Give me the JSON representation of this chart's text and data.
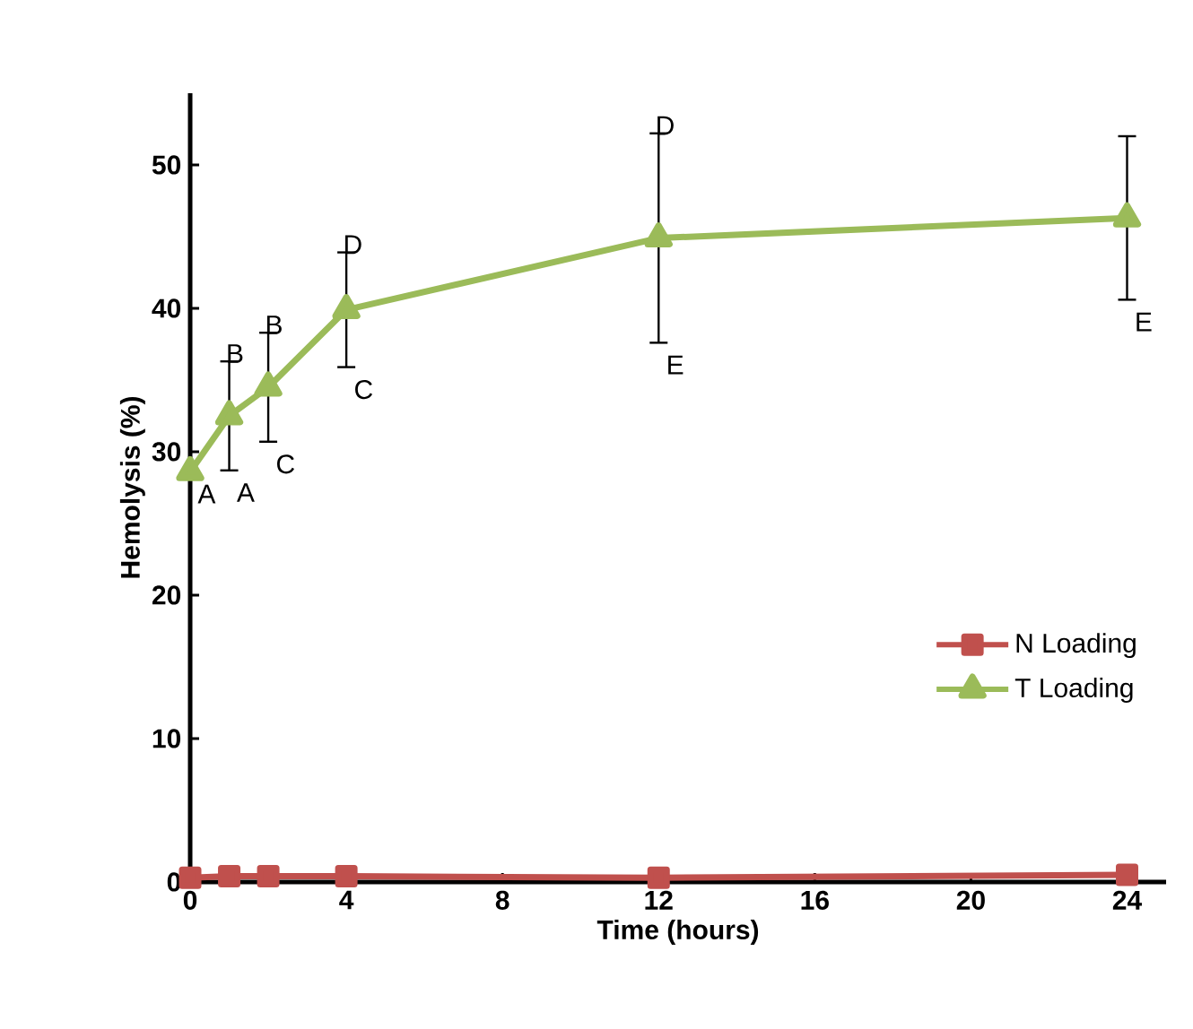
{
  "chart_data": {
    "type": "line",
    "xlabel": "Time (hours)",
    "ylabel": "Hemolysis (%)",
    "x": [
      0,
      1,
      2,
      4,
      12,
      24
    ],
    "series": [
      {
        "name": "N Loading",
        "color": "#c0504d",
        "marker": "square",
        "values": [
          0.3,
          0.4,
          0.4,
          0.4,
          0.3,
          0.5
        ]
      },
      {
        "name": "T Loading",
        "color": "#9bbb59",
        "marker": "triangle",
        "values": [
          28.6,
          32.5,
          34.5,
          39.9,
          44.9,
          46.3
        ],
        "errors": [
          null,
          3.8,
          3.8,
          4,
          7.3,
          5.7
        ]
      }
    ],
    "annotations": [
      {
        "text": "A",
        "x": 0,
        "y": 28.6
      },
      {
        "text": "A",
        "x": 1,
        "y": 28.7
      },
      {
        "text": "B",
        "x": 1,
        "y": 36.3
      },
      {
        "text": "B",
        "x": 2,
        "y": 38.3
      },
      {
        "text": "C",
        "x": 2,
        "y": 30.7
      },
      {
        "text": "D",
        "x": 4,
        "y": 43.9
      },
      {
        "text": "C",
        "x": 4,
        "y": 35.9
      },
      {
        "text": "D",
        "x": 12,
        "y": 52.2
      },
      {
        "text": "E",
        "x": 12,
        "y": 37.6
      },
      {
        "text": "E",
        "x": 24,
        "y": 40.6
      }
    ],
    "xlim": [
      0,
      25
    ],
    "ylim": [
      0,
      55
    ],
    "xticks": [
      0,
      4,
      8,
      12,
      16,
      20,
      24
    ],
    "yticks": [
      0,
      10,
      20,
      30,
      40,
      50
    ],
    "grid": false,
    "legend": "right"
  }
}
